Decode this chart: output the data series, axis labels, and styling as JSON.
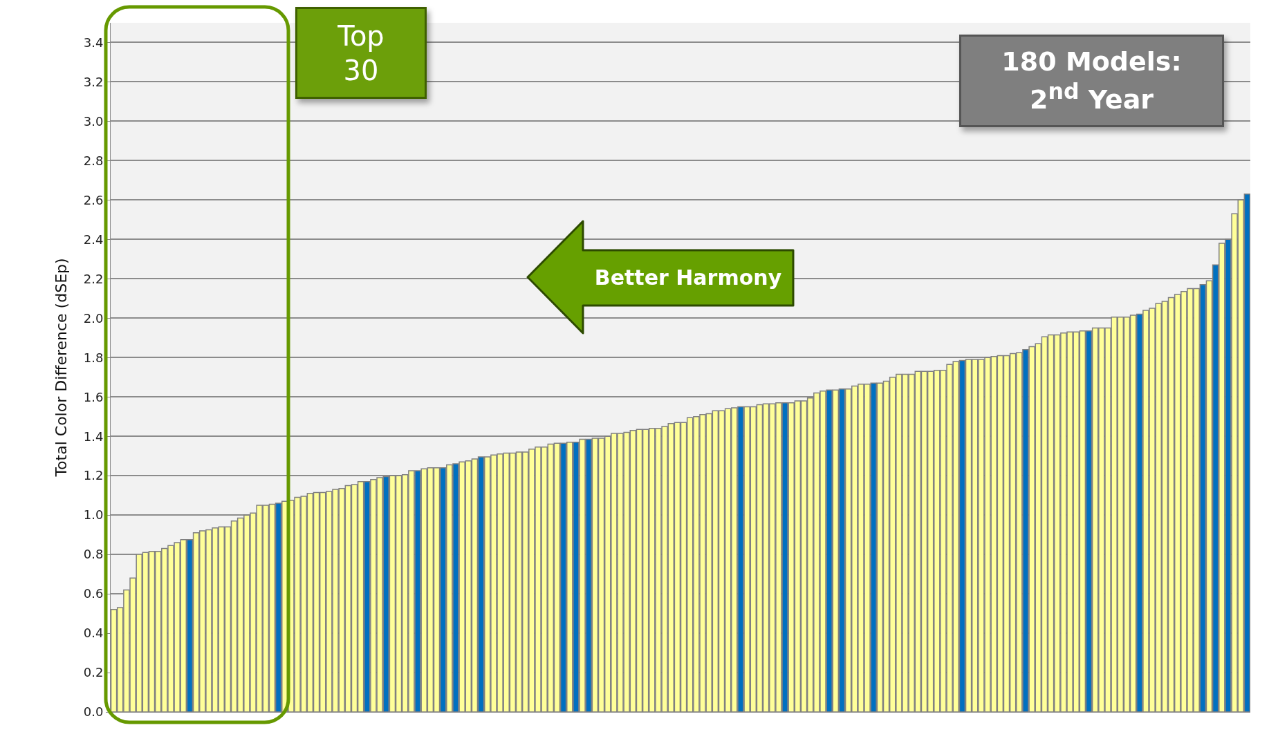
{
  "chart_data": {
    "type": "bar",
    "ylabel": "Total Color Difference (dSEp)",
    "annotations": [
      "Top 30",
      "180 Models: 2$^{nd}$ Year",
      "Better Harmony"
    ],
    "categories": [
      null,
      null,
      null,
      null,
      null,
      null,
      null,
      null,
      null,
      null,
      null,
      null,
      null,
      null,
      null,
      null,
      null,
      null,
      null,
      null,
      null,
      null,
      null,
      null,
      null,
      null,
      null,
      null,
      null,
      null,
      null,
      null,
      null,
      null,
      null,
      null,
      null,
      null,
      null,
      null,
      null,
      null,
      null,
      null,
      null,
      null,
      null,
      null,
      null,
      null,
      null,
      null,
      null,
      null,
      null,
      null,
      null,
      null,
      null,
      null,
      null,
      null,
      null,
      null,
      null,
      null,
      null,
      null,
      null,
      null,
      null,
      null,
      null,
      null,
      null,
      null,
      null,
      null,
      null,
      null,
      null,
      null,
      null,
      null,
      null,
      null,
      null,
      null,
      null,
      null,
      null,
      null,
      null,
      null,
      null,
      null,
      null,
      null,
      null,
      null,
      null,
      null,
      null,
      null,
      null,
      null,
      null,
      null,
      null,
      null,
      null,
      null,
      null,
      null,
      null,
      null,
      null,
      null,
      null,
      null,
      null,
      null,
      null,
      null,
      null,
      null,
      null,
      null,
      null,
      null,
      null,
      null,
      null,
      null,
      null,
      null,
      null,
      null,
      null,
      null,
      null,
      null,
      null,
      null,
      null,
      null,
      null,
      null,
      null,
      null,
      null,
      null,
      null,
      null,
      null,
      null,
      null,
      null,
      null,
      null,
      null,
      null,
      null,
      null,
      null,
      null,
      null,
      null,
      null,
      null,
      null,
      null,
      null,
      null,
      null,
      null,
      null,
      null,
      null,
      null
    ],
    "values": [
      0.52,
      0.53,
      0.62,
      0.68,
      0.8,
      0.81,
      0.815,
      0.815,
      0.83,
      0.845,
      0.86,
      0.875,
      0.875,
      0.91,
      0.92,
      0.925,
      0.935,
      0.94,
      0.94,
      0.97,
      0.985,
      1.0,
      1.01,
      1.05,
      1.05,
      1.055,
      1.06,
      1.07,
      1.075,
      1.09,
      1.095,
      1.11,
      1.115,
      1.115,
      1.12,
      1.13,
      1.135,
      1.15,
      1.155,
      1.17,
      1.17,
      1.18,
      1.19,
      1.195,
      1.2,
      1.2,
      1.205,
      1.225,
      1.225,
      1.235,
      1.24,
      1.24,
      1.24,
      1.255,
      1.26,
      1.27,
      1.275,
      1.285,
      1.295,
      1.295,
      1.305,
      1.31,
      1.315,
      1.315,
      1.32,
      1.32,
      1.335,
      1.345,
      1.345,
      1.36,
      1.365,
      1.365,
      1.37,
      1.37,
      1.385,
      1.385,
      1.39,
      1.39,
      1.4,
      1.415,
      1.415,
      1.42,
      1.43,
      1.435,
      1.435,
      1.44,
      1.44,
      1.45,
      1.465,
      1.47,
      1.47,
      1.495,
      1.5,
      1.51,
      1.515,
      1.53,
      1.53,
      1.54,
      1.545,
      1.55,
      1.55,
      1.55,
      1.56,
      1.565,
      1.565,
      1.57,
      1.57,
      1.57,
      1.58,
      1.58,
      1.595,
      1.62,
      1.63,
      1.635,
      1.635,
      1.64,
      1.64,
      1.655,
      1.665,
      1.665,
      1.67,
      1.67,
      1.68,
      1.7,
      1.715,
      1.715,
      1.715,
      1.73,
      1.73,
      1.73,
      1.735,
      1.735,
      1.765,
      1.78,
      1.785,
      1.79,
      1.79,
      1.79,
      1.8,
      1.805,
      1.81,
      1.81,
      1.82,
      1.825,
      1.84,
      1.855,
      1.87,
      1.905,
      1.915,
      1.915,
      1.925,
      1.93,
      1.93,
      1.935,
      1.935,
      1.95,
      1.95,
      1.95,
      2.005,
      2.005,
      2.005,
      2.015,
      2.02,
      2.04,
      2.05,
      2.075,
      2.085,
      2.105,
      2.12,
      2.135,
      2.15,
      2.15,
      2.17,
      2.19,
      2.27,
      2.38,
      2.4,
      2.53,
      2.6,
      2.63
    ],
    "colors": [
      "#ffff99",
      "#ffff99",
      "#ffff99",
      "#ffff99",
      "#ffff99",
      "#ffff99",
      "#ffff99",
      "#ffff99",
      "#ffff99",
      "#ffff99",
      "#ffff99",
      "#ffff99",
      "#0070c0",
      "#ffff99",
      "#ffff99",
      "#ffff99",
      "#ffff99",
      "#ffff99",
      "#ffff99",
      "#ffff99",
      "#ffff99",
      "#ffff99",
      "#ffff99",
      "#ffff99",
      "#ffff99",
      "#ffff99",
      "#0070c0",
      "#ffff99",
      "#ffff99",
      "#ffff99",
      "#ffff99",
      "#ffff99",
      "#ffff99",
      "#ffff99",
      "#ffff99",
      "#ffff99",
      "#ffff99",
      "#ffff99",
      "#ffff99",
      "#ffff99",
      "#0070c0",
      "#ffff99",
      "#ffff99",
      "#0070c0",
      "#ffff99",
      "#ffff99",
      "#ffff99",
      "#ffff99",
      "#0070c0",
      "#ffff99",
      "#ffff99",
      "#ffff99",
      "#0070c0",
      "#ffff99",
      "#0070c0",
      "#ffff99",
      "#ffff99",
      "#ffff99",
      "#0070c0",
      "#ffff99",
      "#ffff99",
      "#ffff99",
      "#ffff99",
      "#ffff99",
      "#ffff99",
      "#ffff99",
      "#ffff99",
      "#ffff99",
      "#ffff99",
      "#ffff99",
      "#ffff99",
      "#0070c0",
      "#ffff99",
      "#0070c0",
      "#ffff99",
      "#0070c0",
      "#ffff99",
      "#ffff99",
      "#ffff99",
      "#ffff99",
      "#ffff99",
      "#ffff99",
      "#ffff99",
      "#ffff99",
      "#ffff99",
      "#ffff99",
      "#ffff99",
      "#ffff99",
      "#ffff99",
      "#ffff99",
      "#ffff99",
      "#ffff99",
      "#ffff99",
      "#ffff99",
      "#ffff99",
      "#ffff99",
      "#ffff99",
      "#ffff99",
      "#ffff99",
      "#0070c0",
      "#ffff99",
      "#ffff99",
      "#ffff99",
      "#ffff99",
      "#ffff99",
      "#ffff99",
      "#0070c0",
      "#ffff99",
      "#ffff99",
      "#ffff99",
      "#ffff99",
      "#ffff99",
      "#ffff99",
      "#0070c0",
      "#ffff99",
      "#0070c0",
      "#ffff99",
      "#ffff99",
      "#ffff99",
      "#ffff99",
      "#0070c0",
      "#ffff99",
      "#ffff99",
      "#ffff99",
      "#ffff99",
      "#ffff99",
      "#ffff99",
      "#ffff99",
      "#ffff99",
      "#ffff99",
      "#ffff99",
      "#ffff99",
      "#ffff99",
      "#ffff99",
      "#0070c0",
      "#ffff99",
      "#ffff99",
      "#ffff99",
      "#ffff99",
      "#ffff99",
      "#ffff99",
      "#ffff99",
      "#ffff99",
      "#ffff99",
      "#0070c0",
      "#ffff99",
      "#ffff99",
      "#ffff99",
      "#ffff99",
      "#ffff99",
      "#ffff99",
      "#ffff99",
      "#ffff99",
      "#ffff99",
      "#0070c0",
      "#ffff99",
      "#ffff99",
      "#ffff99",
      "#ffff99",
      "#ffff99",
      "#ffff99",
      "#ffff99",
      "#0070c0",
      "#ffff99",
      "#ffff99",
      "#ffff99",
      "#ffff99",
      "#ffff99",
      "#ffff99",
      "#ffff99",
      "#ffff99",
      "#ffff99",
      "#0070c0",
      "#ffff99",
      "#0070c0",
      "#ffff99",
      "#0070c0",
      "#ffff99",
      "#ffff99",
      "#0070c0"
    ],
    "ylim": [
      0,
      3.5
    ],
    "yticks": [
      {
        "value": 0,
        "label": "0.0"
      },
      {
        "value": 0.2,
        "label": "0.2"
      },
      {
        "value": 0.4,
        "label": "0.4"
      },
      {
        "value": 0.6,
        "label": "0.6"
      },
      {
        "value": 0.8,
        "label": "0.8"
      },
      {
        "value": 1,
        "label": "1.0"
      },
      {
        "value": 1.2,
        "label": "1.2"
      },
      {
        "value": 1.4,
        "label": "1.4"
      },
      {
        "value": 1.6,
        "label": "1.6"
      },
      {
        "value": 1.8,
        "label": "1.8"
      },
      {
        "value": 2,
        "label": "2.0"
      },
      {
        "value": 2.2,
        "label": "2.2"
      },
      {
        "value": 2.4,
        "label": "2.4"
      },
      {
        "value": 2.6,
        "label": "2.6"
      },
      {
        "value": 2.8,
        "label": "2.8"
      },
      {
        "value": 3,
        "label": "3.0"
      },
      {
        "value": 3.2,
        "label": "3.2"
      },
      {
        "value": 3.4,
        "label": "3.4"
      }
    ],
    "grid": "y",
    "tick_labels": "y",
    "legend": false
  }
}
